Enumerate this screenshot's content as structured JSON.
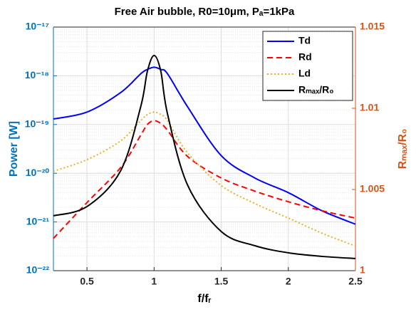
{
  "chart_data": {
    "type": "line",
    "title": "Free Air bubble, R0=10μm, Pₐ=1kPa",
    "xlabel": "f/fᵣ",
    "ylabel": "Power [W]",
    "y2label": "Rₘₐₓ/R₀",
    "x": [
      0.25,
      0.5,
      0.75,
      0.9,
      0.95,
      1.0,
      1.05,
      1.1,
      1.25,
      1.5,
      1.75,
      2.0,
      2.25,
      2.5
    ],
    "xlim": [
      0.25,
      2.5
    ],
    "xticks": [
      0.5,
      1,
      1.5,
      2,
      2.5
    ],
    "ylim": [
      1e-22,
      1e-17
    ],
    "yscale": "log",
    "yticks": [
      {
        "value": 1e-22,
        "label": "10⁻²²"
      },
      {
        "value": 1e-21,
        "label": "10⁻²¹"
      },
      {
        "value": 1e-20,
        "label": "10⁻²⁰"
      },
      {
        "value": 1e-19,
        "label": "10⁻¹⁹"
      },
      {
        "value": 1e-18,
        "label": "10⁻¹⁸"
      },
      {
        "value": 1e-17,
        "label": "10⁻¹⁷"
      }
    ],
    "y2lim": [
      1,
      1.015
    ],
    "y2ticks": [
      1,
      1.005,
      1.01,
      1.015
    ],
    "yaxis_color": "#0072bd",
    "y2axis_color": "#d95319",
    "grid": true,
    "legend": "upper right",
    "series": [
      {
        "name": "Td",
        "color": "#0000ff",
        "linestyle": "solid",
        "values": [
          1.3e-19,
          1.8e-19,
          4.5e-19,
          1.1e-18,
          1.35e-18,
          1.5e-18,
          1.35e-18,
          1.1e-18,
          2.3e-19,
          2.3e-20,
          8e-21,
          4e-21,
          1.7e-21,
          9e-22
        ]
      },
      {
        "name": "Rd",
        "color": "#ff0000",
        "linestyle": "dashed",
        "values": [
          4.6e-22,
          2.5e-21,
          1.3e-20,
          6e-20,
          1e-19,
          1.2e-19,
          1.05e-19,
          7.6e-20,
          2.2e-20,
          8e-21,
          4.3e-21,
          2.6e-21,
          1.7e-21,
          1.2e-21
        ]
      },
      {
        "name": "Ld",
        "color": "#edb120",
        "linestyle": "dotted",
        "values": [
          1.1e-20,
          1.9e-20,
          4.6e-20,
          1.2e-19,
          1.6e-19,
          1.8e-19,
          1.6e-19,
          1.2e-19,
          2.6e-20,
          5.6e-21,
          2.4e-21,
          1.2e-21,
          5.9e-22,
          3.2e-22
        ]
      },
      {
        "name": "Rₘₐₓ/R₀",
        "color": "#000000",
        "linestyle": "solid",
        "axis": "y2",
        "values": [
          1.00338,
          1.00395,
          1.00614,
          1.01009,
          1.01228,
          1.01325,
          1.01228,
          1.00965,
          1.00526,
          1.00241,
          1.00154,
          1.0011,
          1.00088,
          1.00075
        ]
      }
    ]
  }
}
